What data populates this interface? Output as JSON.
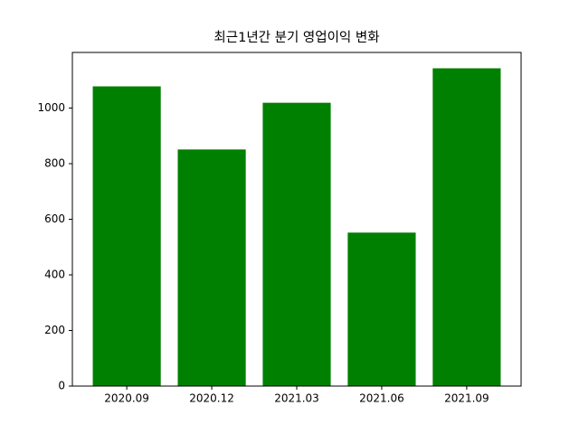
{
  "chart_data": {
    "type": "bar",
    "title": "최근1년간 분기 영업이익 변화",
    "categories": [
      "2020.09",
      "2020.12",
      "2021.03",
      "2021.06",
      "2021.09"
    ],
    "values": [
      1078,
      851,
      1019,
      552,
      1143
    ],
    "color": "#008000",
    "ylim": [
      0,
      1200
    ],
    "yticks": [
      0,
      200,
      400,
      600,
      800,
      1000
    ],
    "grid": false
  }
}
